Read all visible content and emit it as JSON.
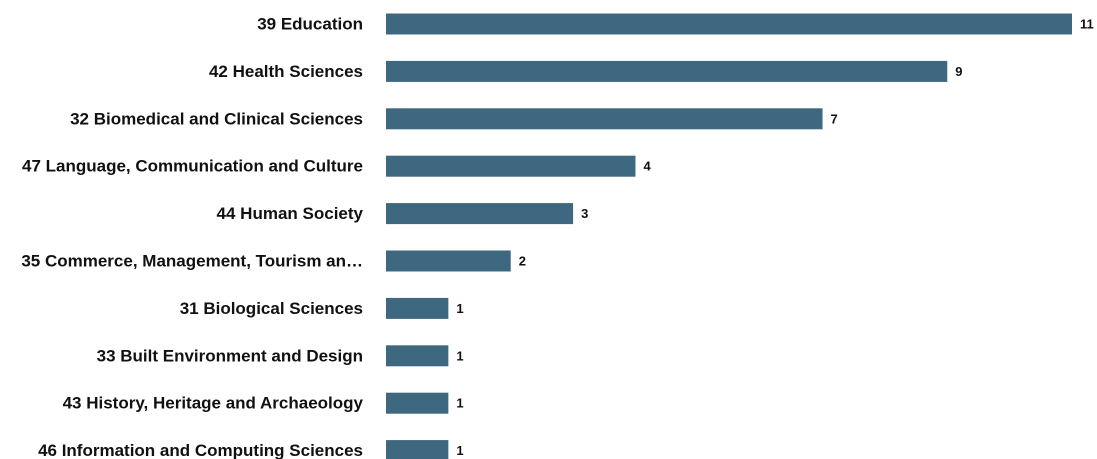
{
  "chart_data": {
    "type": "bar",
    "orientation": "horizontal",
    "categories": [
      "39 Education",
      "42 Health Sciences",
      "32 Biomedical and Clinical Sciences",
      "47 Language, Communication and Culture",
      "44 Human Society",
      "35 Commerce, Management, Tourism an…",
      "31 Biological Sciences",
      "33 Built Environment and Design",
      "43 History, Heritage and Archaeology",
      "46 Information and Computing Sciences"
    ],
    "values": [
      11,
      9,
      7,
      4,
      3,
      2,
      1,
      1,
      1,
      1
    ],
    "value_labels": [
      "11",
      "9",
      "7",
      "4",
      "3",
      "2",
      "1",
      "1",
      "1",
      "1"
    ],
    "xlim": [
      0,
      11
    ],
    "grid": false,
    "bar_color": "#3d6880"
  }
}
